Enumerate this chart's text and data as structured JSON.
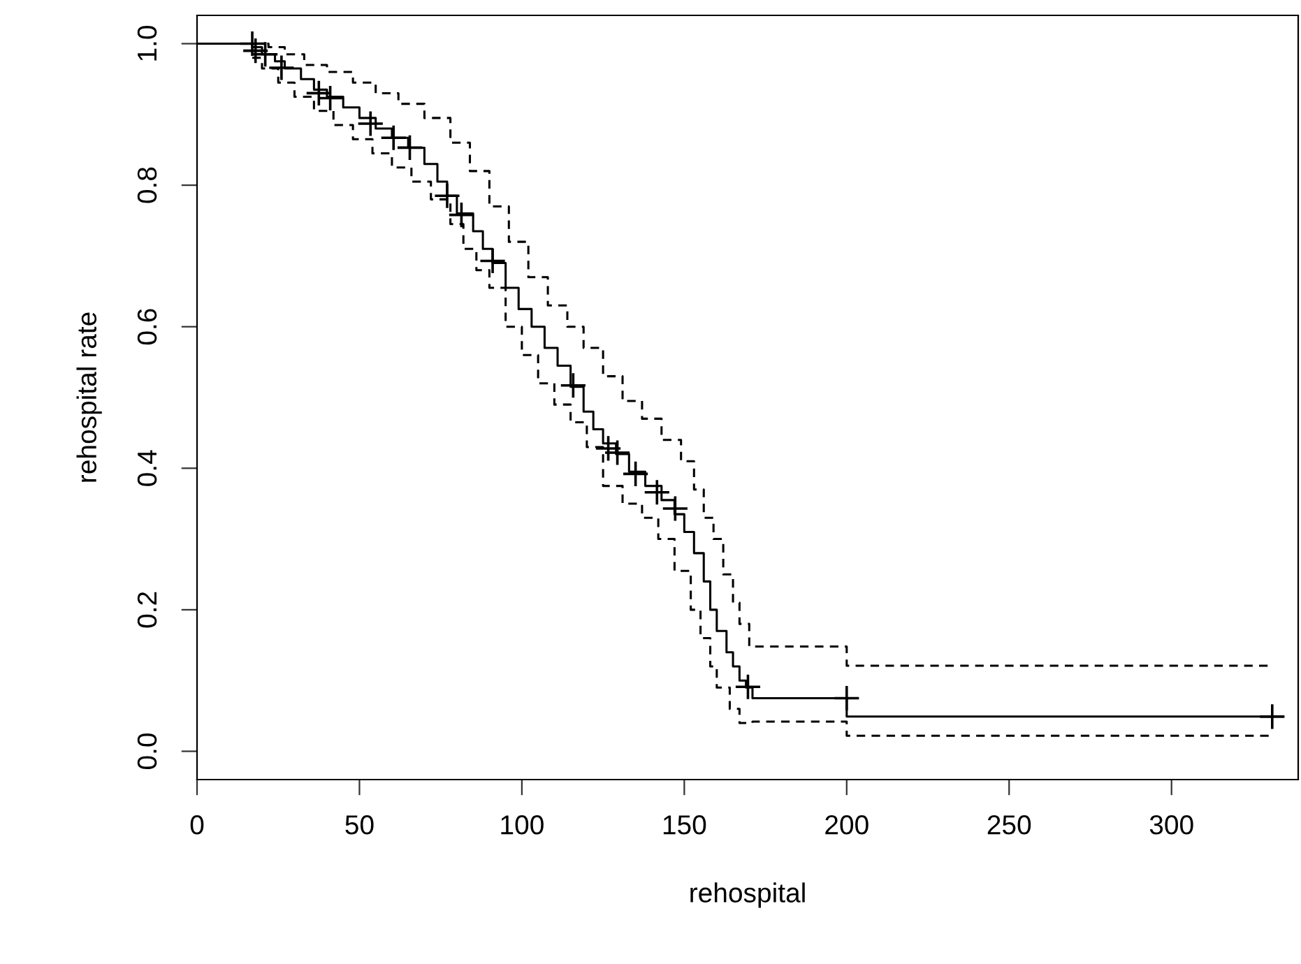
{
  "chart_data": {
    "type": "step",
    "xlabel": "rehospital",
    "ylabel": "rehospital rate",
    "xlim": [
      0,
      339
    ],
    "ylim": [
      -0.04,
      1.04
    ],
    "xticks": [
      0,
      50,
      100,
      150,
      200,
      250,
      300
    ],
    "yticks": [
      {
        "value": 0,
        "label": "0.0"
      },
      0.2,
      0.4,
      0.6,
      0.8,
      {
        "value": 1,
        "label": "1.0"
      }
    ],
    "grid": false,
    "series": [
      {
        "color": "#000000",
        "line_style": "solid",
        "x": [
          0,
          17,
          20,
          24,
          27,
          32,
          36,
          40,
          45,
          50,
          55,
          60,
          65,
          70,
          74,
          77,
          80,
          85,
          88,
          91,
          95,
          99,
          103,
          107,
          111,
          115,
          119,
          122,
          125,
          129,
          133,
          138,
          143,
          147,
          150,
          153,
          156,
          158,
          160,
          163,
          165,
          167,
          169,
          171,
          200,
          331
        ],
        "values": [
          1.0,
          0.995,
          0.985,
          0.975,
          0.965,
          0.95,
          0.935,
          0.925,
          0.91,
          0.895,
          0.88,
          0.867,
          0.853,
          0.83,
          0.805,
          0.785,
          0.76,
          0.735,
          0.71,
          0.69,
          0.655,
          0.625,
          0.6,
          0.57,
          0.545,
          0.515,
          0.48,
          0.455,
          0.435,
          0.42,
          0.395,
          0.375,
          0.355,
          0.335,
          0.31,
          0.28,
          0.24,
          0.2,
          0.17,
          0.14,
          0.12,
          0.1,
          0.09,
          0.075,
          0.049,
          0.049
        ]
      },
      {
        "color": "#000000",
        "line_style": "dashed",
        "x": [
          17,
          22,
          27,
          33,
          40,
          48,
          55,
          62,
          70,
          78,
          84,
          90,
          96,
          102,
          108,
          114,
          119,
          125,
          131,
          137,
          143,
          149,
          153,
          156,
          159,
          162,
          165,
          167,
          170,
          200,
          330
        ],
        "values": [
          1.0,
          0.995,
          0.985,
          0.97,
          0.96,
          0.945,
          0.93,
          0.915,
          0.895,
          0.86,
          0.82,
          0.77,
          0.72,
          0.67,
          0.63,
          0.6,
          0.57,
          0.53,
          0.495,
          0.47,
          0.44,
          0.41,
          0.37,
          0.33,
          0.3,
          0.25,
          0.21,
          0.18,
          0.148,
          0.121,
          0.121
        ]
      },
      {
        "color": "#000000",
        "line_style": "dashed",
        "x": [
          17,
          20,
          25,
          30,
          36,
          42,
          48,
          54,
          60,
          66,
          72,
          78,
          82,
          86,
          90,
          95,
          100,
          105,
          110,
          115,
          120,
          125,
          131,
          137,
          142,
          147,
          152,
          155,
          158,
          160,
          164,
          167,
          171,
          200,
          330
        ],
        "values": [
          0.98,
          0.965,
          0.945,
          0.925,
          0.905,
          0.885,
          0.865,
          0.845,
          0.825,
          0.805,
          0.78,
          0.745,
          0.71,
          0.68,
          0.655,
          0.6,
          0.56,
          0.52,
          0.49,
          0.465,
          0.43,
          0.375,
          0.35,
          0.33,
          0.3,
          0.255,
          0.2,
          0.16,
          0.12,
          0.09,
          0.06,
          0.04,
          0.042,
          0.022,
          0.022
        ]
      },
      {
        "type": "scatter",
        "marker": "cross",
        "color": "#000000",
        "x": [
          17,
          18,
          21,
          26,
          37.5,
          41,
          53.4,
          60.5,
          65.5,
          77,
          81.4,
          91,
          115.8,
          126.6,
          129.4,
          135,
          141.6,
          147.2,
          169.6,
          200,
          331
        ],
        "values": [
          1.0,
          0.99,
          0.985,
          0.966,
          0.93,
          0.923,
          0.887,
          0.867,
          0.853,
          0.785,
          0.758,
          0.693,
          0.517,
          0.428,
          0.422,
          0.392,
          0.366,
          0.343,
          0.091,
          0.075,
          0.049
        ]
      }
    ]
  }
}
